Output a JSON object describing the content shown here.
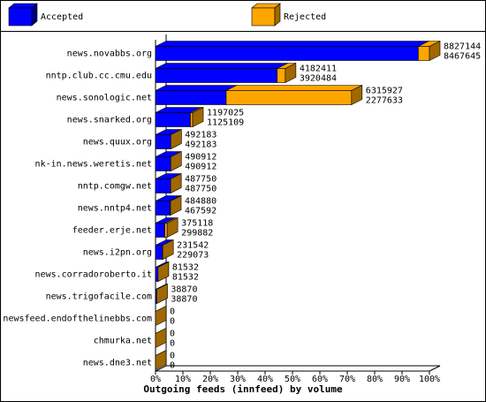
{
  "chart_data": {
    "type": "hbar3d",
    "x_label": "Outgoing feeds (innfeed) by volume",
    "categories": [
      "news.novabbs.org",
      "nntp.club.cc.cmu.edu",
      "news.sonologic.net",
      "news.snarked.org",
      "news.quux.org",
      "nk-in.news.weretis.net",
      "nntp.comgw.net",
      "news.nntp4.net",
      "feeder.erje.net",
      "news.i2pn.org",
      "news.corradoroberto.it",
      "news.trigofacile.com",
      "newsfeed.endofthelinebbs.com",
      "chmurka.net",
      "news.dne3.net"
    ],
    "series": [
      {
        "name": "Accepted",
        "color": "#0000ff",
        "side": "#000080",
        "values": [
          8467645,
          3920484,
          2277633,
          1125109,
          492183,
          490912,
          487750,
          467592,
          299882,
          229073,
          81532,
          38870,
          0,
          0,
          0
        ]
      },
      {
        "name": "Rejected",
        "color": "#ffa500",
        "side": "#a06800",
        "values": [
          359499,
          261927,
          4038294,
          71916,
          0,
          0,
          0,
          17288,
          75236,
          2469,
          0,
          0,
          0,
          0,
          0
        ]
      }
    ],
    "totals": [
      8827144,
      4182411,
      6315927,
      1197025,
      492183,
      490912,
      487750,
      484880,
      375118,
      231542,
      81532,
      38870,
      0,
      0,
      0
    ],
    "xlim": [
      0,
      8827144
    ],
    "xticks": [
      {
        "value": 0,
        "label": "0%"
      },
      {
        "value": 882714.4,
        "label": "10%"
      },
      {
        "value": 1765428.8,
        "label": "20%"
      },
      {
        "value": 2648143.2,
        "label": "30%"
      },
      {
        "value": 3530857.6,
        "label": "40%"
      },
      {
        "value": 4413572,
        "label": "50%"
      },
      {
        "value": 5296286.4,
        "label": "60%"
      },
      {
        "value": 6179000.8,
        "label": "70%"
      },
      {
        "value": 7061715.2,
        "label": "80%"
      },
      {
        "value": 7944429.6,
        "label": "90%"
      },
      {
        "value": 8827144,
        "label": "100%"
      }
    ]
  }
}
